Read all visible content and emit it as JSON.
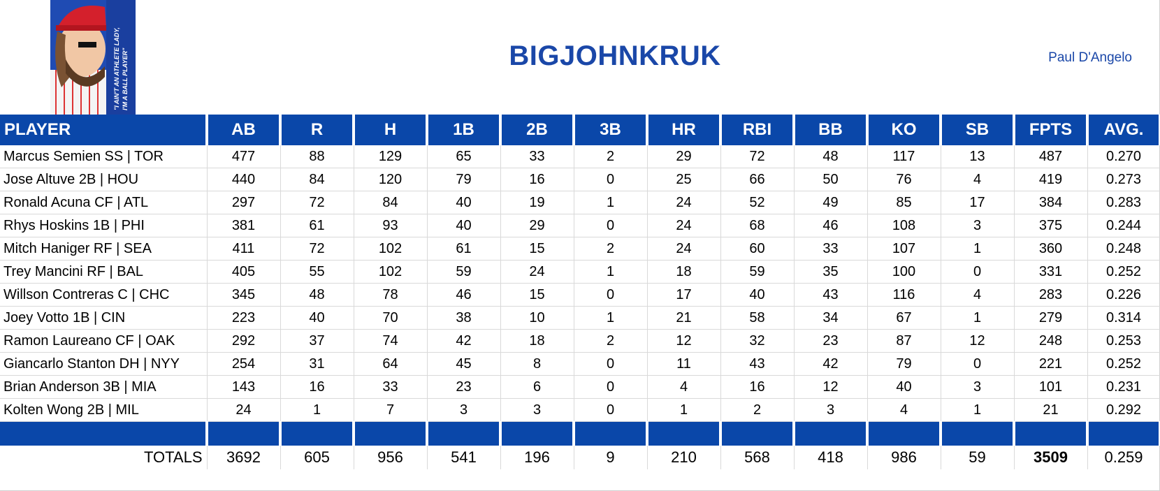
{
  "team_name": "BIGJOHNKRUK",
  "owner": "Paul D'Angelo",
  "logo": {
    "icon": "kruk-cartoon-logo",
    "quote": "\"I AIN'T AN ATHLETE LADY, I'M A BALL PLAYER\""
  },
  "colors": {
    "header": "#0a47a9",
    "title": "#1a47a8"
  },
  "columns": [
    "PLAYER",
    "AB",
    "R",
    "H",
    "1B",
    "2B",
    "3B",
    "HR",
    "RBI",
    "BB",
    "KO",
    "SB",
    "FPTS",
    "AVG."
  ],
  "rows": [
    [
      "Marcus Semien SS | TOR",
      "477",
      "88",
      "129",
      "65",
      "33",
      "2",
      "29",
      "72",
      "48",
      "117",
      "13",
      "487",
      "0.270"
    ],
    [
      "Jose Altuve 2B | HOU",
      "440",
      "84",
      "120",
      "79",
      "16",
      "0",
      "25",
      "66",
      "50",
      "76",
      "4",
      "419",
      "0.273"
    ],
    [
      "Ronald Acuna CF | ATL",
      "297",
      "72",
      "84",
      "40",
      "19",
      "1",
      "24",
      "52",
      "49",
      "85",
      "17",
      "384",
      "0.283"
    ],
    [
      "Rhys Hoskins 1B | PHI",
      "381",
      "61",
      "93",
      "40",
      "29",
      "0",
      "24",
      "68",
      "46",
      "108",
      "3",
      "375",
      "0.244"
    ],
    [
      "Mitch Haniger RF | SEA",
      "411",
      "72",
      "102",
      "61",
      "15",
      "2",
      "24",
      "60",
      "33",
      "107",
      "1",
      "360",
      "0.248"
    ],
    [
      "Trey Mancini RF | BAL",
      "405",
      "55",
      "102",
      "59",
      "24",
      "1",
      "18",
      "59",
      "35",
      "100",
      "0",
      "331",
      "0.252"
    ],
    [
      "Willson Contreras C | CHC",
      "345",
      "48",
      "78",
      "46",
      "15",
      "0",
      "17",
      "40",
      "43",
      "116",
      "4",
      "283",
      "0.226"
    ],
    [
      "Joey Votto 1B | CIN",
      "223",
      "40",
      "70",
      "38",
      "10",
      "1",
      "21",
      "58",
      "34",
      "67",
      "1",
      "279",
      "0.314"
    ],
    [
      "Ramon Laureano CF | OAK",
      "292",
      "37",
      "74",
      "42",
      "18",
      "2",
      "12",
      "32",
      "23",
      "87",
      "12",
      "248",
      "0.253"
    ],
    [
      "Giancarlo Stanton DH | NYY",
      "254",
      "31",
      "64",
      "45",
      "8",
      "0",
      "11",
      "43",
      "42",
      "79",
      "0",
      "221",
      "0.252"
    ],
    [
      "Brian Anderson 3B | MIA",
      "143",
      "16",
      "33",
      "23",
      "6",
      "0",
      "4",
      "16",
      "12",
      "40",
      "3",
      "101",
      "0.231"
    ],
    [
      "Kolten Wong 2B | MIL",
      "24",
      "1",
      "7",
      "3",
      "3",
      "0",
      "1",
      "2",
      "3",
      "4",
      "1",
      "21",
      "0.292"
    ]
  ],
  "totals": [
    "TOTALS",
    "3692",
    "605",
    "956",
    "541",
    "196",
    "9",
    "210",
    "568",
    "418",
    "986",
    "59",
    "3509",
    "0.259"
  ]
}
